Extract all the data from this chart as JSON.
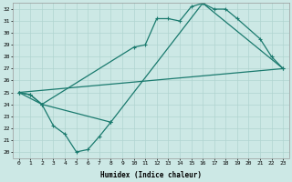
{
  "xlabel": "Humidex (Indice chaleur)",
  "xlim": [
    -0.5,
    23.5
  ],
  "ylim": [
    19.5,
    32.5
  ],
  "yticks": [
    20,
    21,
    22,
    23,
    24,
    25,
    26,
    27,
    28,
    29,
    30,
    31,
    32
  ],
  "xticks": [
    0,
    1,
    2,
    3,
    4,
    5,
    6,
    7,
    8,
    9,
    10,
    11,
    12,
    13,
    14,
    15,
    16,
    17,
    18,
    19,
    20,
    21,
    22,
    23
  ],
  "bg_color": "#cce8e5",
  "line_color": "#1a7a6e",
  "grid_color": "#b0d4d0",
  "line1_x": [
    0,
    1,
    2,
    3,
    4,
    5,
    6,
    7,
    8
  ],
  "line1_y": [
    25.0,
    24.8,
    24.0,
    22.2,
    21.5,
    20.0,
    20.2,
    21.3,
    22.5
  ],
  "line2_x": [
    0,
    1,
    2,
    10,
    11,
    12,
    13,
    14,
    15,
    16,
    17,
    18,
    19,
    21,
    22,
    23
  ],
  "line2_y": [
    25.0,
    24.8,
    24.0,
    28.8,
    29.0,
    31.2,
    31.2,
    31.0,
    32.2,
    32.5,
    32.0,
    32.0,
    31.2,
    29.5,
    28.0,
    27.0
  ],
  "line3_x": [
    0,
    2,
    8,
    16,
    23
  ],
  "line3_y": [
    25.0,
    24.0,
    22.5,
    32.5,
    27.0
  ],
  "line4_x": [
    0,
    23
  ],
  "line4_y": [
    25.0,
    27.0
  ]
}
